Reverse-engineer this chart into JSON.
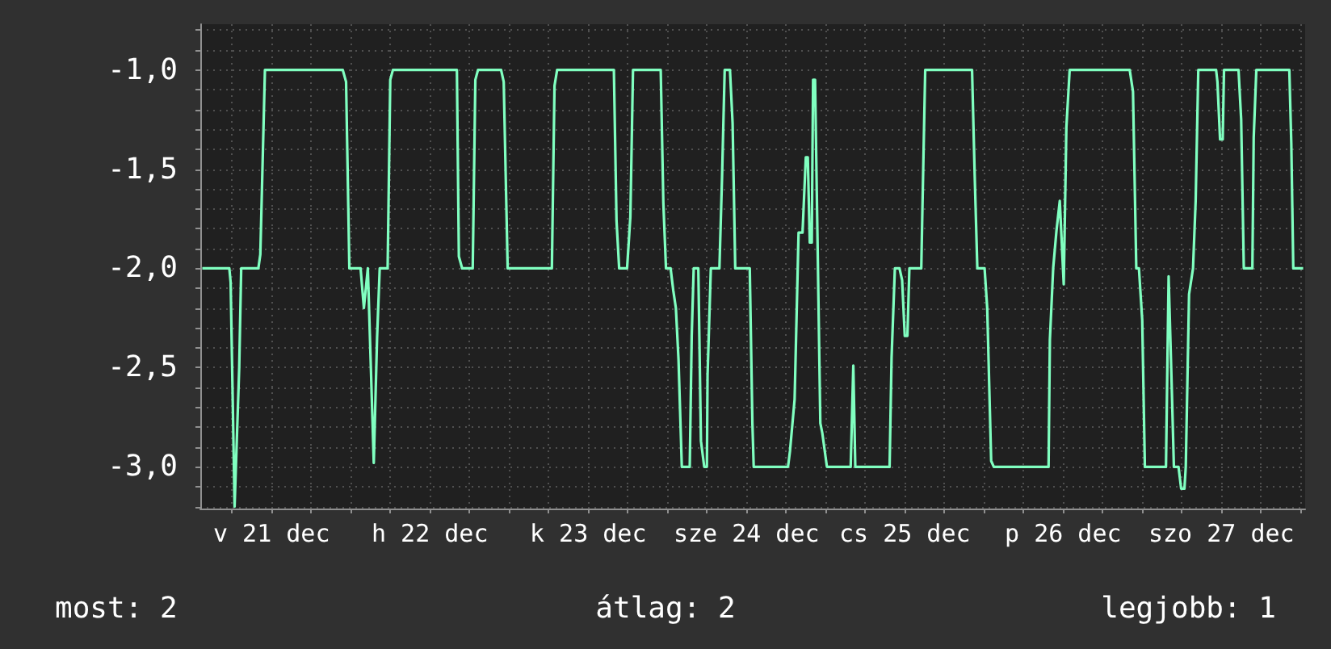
{
  "chart_data": {
    "type": "line",
    "annotations": [
      "most: 2",
      "átlag: 2",
      "legjobb: 1"
    ],
    "xlim": [
      "--12-21T01:12",
      "--12-28T00:42"
    ],
    "xticks": [
      {
        "value": "--12-21T06:00",
        "label": null
      },
      {
        "value": "--12-21T12:00",
        "label": "v 21 dec"
      },
      {
        "value": "--12-21T18:00",
        "label": null
      },
      {
        "value": "--12-22T00:00",
        "label": null
      },
      {
        "value": "--12-22T06:00",
        "label": null
      },
      {
        "value": "--12-22T12:00",
        "label": "h 22 dec"
      },
      {
        "value": "--12-22T18:00",
        "label": null
      },
      {
        "value": "--12-23T00:00",
        "label": null
      },
      {
        "value": "--12-23T06:00",
        "label": null
      },
      {
        "value": "--12-23T12:00",
        "label": "k 23 dec"
      },
      {
        "value": "--12-23T18:00",
        "label": null
      },
      {
        "value": "--12-24T00:00",
        "label": null
      },
      {
        "value": "--12-24T06:00",
        "label": null
      },
      {
        "value": "--12-24T12:00",
        "label": "sze 24 dec"
      },
      {
        "value": "--12-24T18:00",
        "label": null
      },
      {
        "value": "--12-25T00:00",
        "label": null
      },
      {
        "value": "--12-25T06:00",
        "label": null
      },
      {
        "value": "--12-25T12:00",
        "label": "cs 25 dec"
      },
      {
        "value": "--12-25T18:00",
        "label": null
      },
      {
        "value": "--12-26T00:00",
        "label": null
      },
      {
        "value": "--12-26T06:00",
        "label": null
      },
      {
        "value": "--12-26T12:00",
        "label": "p 26 dec"
      },
      {
        "value": "--12-26T18:00",
        "label": null
      },
      {
        "value": "--12-27T00:00",
        "label": null
      },
      {
        "value": "--12-27T06:00",
        "label": null
      },
      {
        "value": "--12-27T12:00",
        "label": "szo 27 dec"
      },
      {
        "value": "--12-27T18:00",
        "label": null
      },
      {
        "value": "--12-28T00:00",
        "label": null
      }
    ],
    "ylim": [
      -3.21,
      -0.77
    ],
    "yticks": [
      {
        "value": -3.2,
        "label": null
      },
      {
        "value": -3.1,
        "label": null
      },
      {
        "value": -3.0,
        "label": "-3,0"
      },
      {
        "value": -2.9,
        "label": null
      },
      {
        "value": -2.8,
        "label": null
      },
      {
        "value": -2.7,
        "label": null
      },
      {
        "value": -2.6,
        "label": null
      },
      {
        "value": -2.5,
        "label": "-2,5"
      },
      {
        "value": -2.4,
        "label": null
      },
      {
        "value": -2.3,
        "label": null
      },
      {
        "value": -2.2,
        "label": null
      },
      {
        "value": -2.1,
        "label": null
      },
      {
        "value": -2.0,
        "label": "-2,0"
      },
      {
        "value": -1.9,
        "label": null
      },
      {
        "value": -1.8,
        "label": null
      },
      {
        "value": -1.7,
        "label": null
      },
      {
        "value": -1.6,
        "label": null
      },
      {
        "value": -1.5,
        "label": "-1,5"
      },
      {
        "value": -1.4,
        "label": null
      },
      {
        "value": -1.3,
        "label": null
      },
      {
        "value": -1.2,
        "label": null
      },
      {
        "value": -1.1,
        "label": null
      },
      {
        "value": -1.0,
        "label": "-1,0"
      },
      {
        "value": -0.9,
        "label": null
      },
      {
        "value": -0.8,
        "label": null
      }
    ],
    "grid": true,
    "marker": "none",
    "line_style": "solid",
    "series": [
      {
        "color": "#80ffc0",
        "x": [
          "--12-21T01:30",
          "--12-21T05:36",
          "--12-21T05:48",
          "--12-21T06:24",
          "--12-21T07:06",
          "--12-21T07:24",
          "--12-21T10:00",
          "--12-21T10:18",
          "--12-21T11:00",
          "--12-21T22:48",
          "--12-21T23:18",
          "--12-21T23:48",
          "--12-22T01:30",
          "--12-22T02:00",
          "--12-22T02:36",
          "--12-22T03:30",
          "--12-22T04:00",
          "--12-22T04:24",
          "--12-22T05:36",
          "--12-22T06:00",
          "--12-22T06:24",
          "--12-22T16:06",
          "--12-22T16:24",
          "--12-22T16:54",
          "--12-22T18:30",
          "--12-22T18:54",
          "--12-22T19:18",
          "--12-22T22:48",
          "--12-22T23:12",
          "--12-22T23:48",
          "--12-23T06:30",
          "--12-23T06:54",
          "--12-23T07:18",
          "--12-23T15:54",
          "--12-23T16:18",
          "--12-23T16:42",
          "--12-23T17:54",
          "--12-23T18:24",
          "--12-23T18:48",
          "--12-23T23:00",
          "--12-23T23:24",
          "--12-23T23:48",
          "--12-24T00:30",
          "--12-24T00:54",
          "--12-24T01:18",
          "--12-24T01:42",
          "--12-24T02:12",
          "--12-24T03:24",
          "--12-24T03:42",
          "--12-24T04:00",
          "--12-24T04:42",
          "--12-24T05:06",
          "--12-24T05:36",
          "--12-24T06:00",
          "--12-24T06:06",
          "--12-24T06:36",
          "--12-24T07:54",
          "--12-24T08:18",
          "--12-24T08:42",
          "--12-24T09:30",
          "--12-24T09:54",
          "--12-24T10:18",
          "--12-24T12:30",
          "--12-24T12:54",
          "--12-24T13:06",
          "--12-24T18:18",
          "--12-24T18:36",
          "--12-24T19:18",
          "--12-24T19:54",
          "--12-24T20:30",
          "--12-24T21:00",
          "--12-24T21:18",
          "--12-24T21:36",
          "--12-24T21:54",
          "--12-24T22:06",
          "--12-24T22:24",
          "--12-24T23:12",
          "--12-24T23:30",
          "--12-25T00:12",
          "--12-25T03:48",
          "--12-25T04:12",
          "--12-25T04:30",
          "--12-25T09:42",
          "--12-25T10:00",
          "--12-25T10:30",
          "--12-25T11:12",
          "--12-25T11:36",
          "--12-25T12:00",
          "--12-25T12:24",
          "--12-25T12:42",
          "--12-25T14:30",
          "--12-25T14:42",
          "--12-25T15:06",
          "--12-25T22:12",
          "--12-25T22:36",
          "--12-25T23:00",
          "--12-26T00:06",
          "--12-26T00:30",
          "--12-26T01:06",
          "--12-26T01:30",
          "--12-26T09:48",
          "--12-26T10:00",
          "--12-26T10:30",
          "--12-26T11:00",
          "--12-26T11:30",
          "--12-26T12:06",
          "--12-26T12:30",
          "--12-26T13:00",
          "--12-26T22:06",
          "--12-26T22:36",
          "--12-26T23:06",
          "--12-26T23:30",
          "--12-27T00:00",
          "--12-27T00:24",
          "--12-27T03:36",
          "--12-27T04:00",
          "--12-27T04:30",
          "--12-27T04:48",
          "--12-27T05:30",
          "--12-27T05:54",
          "--12-27T06:24",
          "--12-27T06:36",
          "--12-27T07:06",
          "--12-27T07:42",
          "--12-27T08:06",
          "--12-27T08:30",
          "--12-27T11:12",
          "--12-27T11:24",
          "--12-27T11:48",
          "--12-27T12:12",
          "--12-27T12:24",
          "--12-27T14:36",
          "--12-27T15:00",
          "--12-27T15:24",
          "--12-27T16:42",
          "--12-27T16:54",
          "--12-27T17:18",
          "--12-27T22:18",
          "--12-27T22:36",
          "--12-27T22:54",
          "--12-28T00:24"
        ],
        "values": [
          -2.0,
          -2.0,
          -2.07,
          -3.2,
          -2.5,
          -2.0,
          -2.0,
          -1.93,
          -1.0,
          -1.0,
          -1.06,
          -2.0,
          -2.0,
          -2.2,
          -2.0,
          -2.98,
          -2.35,
          -2.0,
          -2.0,
          -1.05,
          -1.0,
          -1.0,
          -1.94,
          -2.0,
          -2.0,
          -1.05,
          -1.0,
          -1.0,
          -1.06,
          -2.0,
          -2.0,
          -1.08,
          -1.0,
          -1.0,
          -1.76,
          -2.0,
          -2.0,
          -1.74,
          -1.0,
          -1.0,
          -1.67,
          -2.0,
          -2.0,
          -2.11,
          -2.2,
          -2.46,
          -3.0,
          -3.0,
          -2.34,
          -2.0,
          -2.0,
          -2.87,
          -3.0,
          -3.0,
          -2.54,
          -2.0,
          -2.0,
          -1.54,
          -1.0,
          -1.0,
          -1.27,
          -2.0,
          -2.0,
          -2.78,
          -3.0,
          -3.0,
          -2.92,
          -2.66,
          -1.82,
          -1.82,
          -1.44,
          -1.44,
          -1.87,
          -1.87,
          -1.05,
          -1.05,
          -2.78,
          -2.83,
          -3.0,
          -3.0,
          -2.49,
          -3.0,
          -3.0,
          -2.45,
          -2.0,
          -2.0,
          -2.06,
          -2.34,
          -2.34,
          -2.0,
          -2.0,
          -1.66,
          -1.0,
          -1.0,
          -1.53,
          -2.0,
          -2.0,
          -2.2,
          -2.97,
          -3.0,
          -3.0,
          -2.36,
          -2.0,
          -1.81,
          -1.66,
          -2.08,
          -1.29,
          -1.0,
          -1.0,
          -1.11,
          -2.0,
          -2.0,
          -2.26,
          -3.0,
          -3.0,
          -2.04,
          -2.63,
          -3.0,
          -3.0,
          -3.11,
          -3.11,
          -3.0,
          -2.13,
          -2.0,
          -1.66,
          -1.0,
          -1.0,
          -1.06,
          -1.35,
          -1.35,
          -1.0,
          -1.0,
          -1.25,
          -2.0,
          -2.0,
          -1.34,
          -1.0,
          -1.0,
          -1.37,
          -2.0,
          -2.0
        ]
      }
    ]
  }
}
